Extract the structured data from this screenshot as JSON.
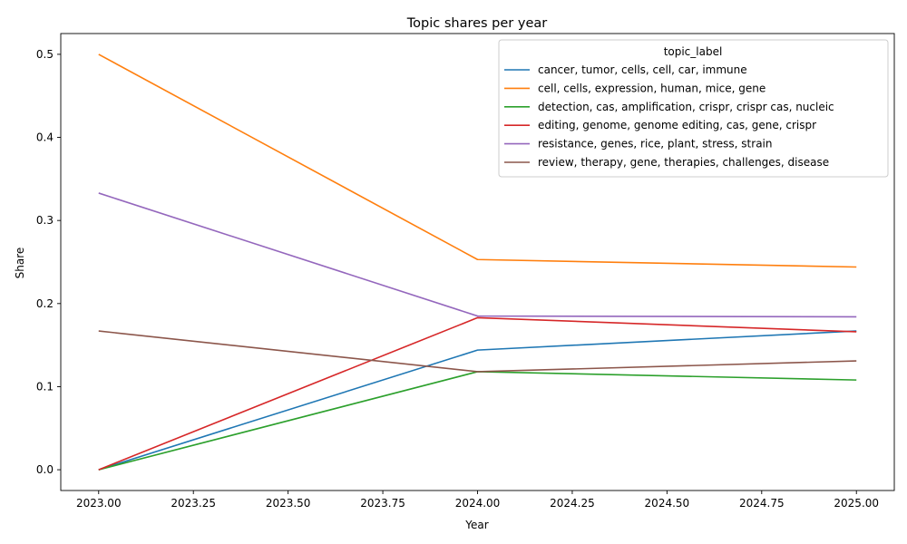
{
  "chart_data": {
    "type": "line",
    "title": "Topic shares per year",
    "xlabel": "Year",
    "ylabel": "Share",
    "xlim": [
      2022.9,
      2025.1
    ],
    "ylim": [
      -0.025,
      0.525
    ],
    "xticks": [
      2023.0,
      2023.25,
      2023.5,
      2023.75,
      2024.0,
      2024.25,
      2024.5,
      2024.75,
      2025.0
    ],
    "xtick_labels": [
      "2023.00",
      "2023.25",
      "2023.50",
      "2023.75",
      "2024.00",
      "2024.25",
      "2024.50",
      "2024.75",
      "2025.00"
    ],
    "yticks": [
      0.0,
      0.1,
      0.2,
      0.3,
      0.4,
      0.5
    ],
    "ytick_labels": [
      "0.0",
      "0.1",
      "0.2",
      "0.3",
      "0.4",
      "0.5"
    ],
    "grid": false,
    "legend": {
      "title": "topic_label",
      "placement": "top-right"
    },
    "x": [
      2023,
      2024,
      2025
    ],
    "series": [
      {
        "name": "cancer, tumor, cells, cell, car, immune",
        "color": "#1f77b4",
        "values": [
          0.0,
          0.144,
          0.167
        ]
      },
      {
        "name": "cell, cells, expression, human, mice, gene",
        "color": "#ff7f0e",
        "values": [
          0.5,
          0.253,
          0.244
        ]
      },
      {
        "name": "detection, cas, amplification, crispr, crispr cas, nucleic",
        "color": "#2ca02c",
        "values": [
          0.0,
          0.118,
          0.108
        ]
      },
      {
        "name": "editing, genome, genome editing, cas, gene, crispr",
        "color": "#d62728",
        "values": [
          0.0,
          0.183,
          0.166
        ]
      },
      {
        "name": "resistance, genes, rice, plant, stress, strain",
        "color": "#9467bd",
        "values": [
          0.333,
          0.185,
          0.184
        ]
      },
      {
        "name": "review, therapy, gene, therapies, challenges, disease",
        "color": "#8c564b",
        "values": [
          0.167,
          0.118,
          0.131
        ]
      }
    ]
  }
}
